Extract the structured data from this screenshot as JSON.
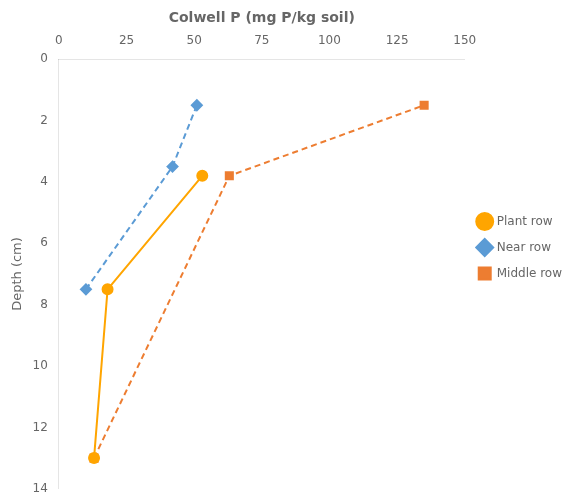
{
  "chart_data": {
    "type": "line",
    "xlabel": "Colwell P (mg P/kg soil)",
    "ylabel": "Depth (cm)",
    "xlim": [
      0,
      150
    ],
    "ylim": [
      14,
      0
    ],
    "xticks": [
      0,
      25,
      50,
      75,
      100,
      125,
      150
    ],
    "yticks": [
      0,
      2,
      4,
      6,
      8,
      10,
      12,
      14
    ],
    "grid": false,
    "legend": "right",
    "series": [
      {
        "name": "Plant row",
        "color": "#FFA500",
        "marker": "circle",
        "line_style": "solid",
        "x": [
          13,
          18,
          53
        ],
        "values": [
          13,
          7.5,
          3.8
        ]
      },
      {
        "name": "Near row",
        "color": "#5B9BD5",
        "marker": "diamond",
        "line_style": "dashed",
        "x": [
          10,
          42,
          51
        ],
        "values": [
          7.5,
          3.5,
          1.5
        ]
      },
      {
        "name": "Middle row",
        "color": "#ED7D31",
        "marker": "square",
        "line_style": "dashed",
        "x": [
          13,
          63,
          135
        ],
        "values": [
          13,
          3.8,
          1.5
        ]
      }
    ]
  }
}
